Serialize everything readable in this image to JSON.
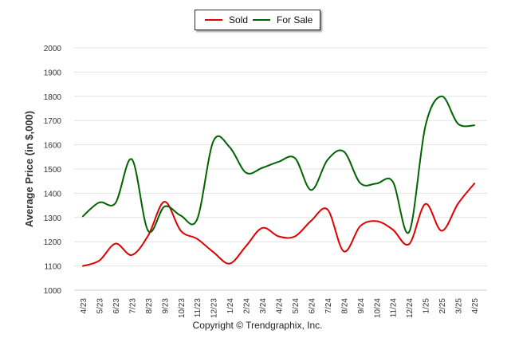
{
  "chart_data": {
    "type": "line",
    "title": "",
    "xlabel": "",
    "ylabel": "Average Price (in $,000)",
    "ylim": [
      1000,
      2000
    ],
    "yticks": [
      1000,
      1100,
      1200,
      1300,
      1400,
      1500,
      1600,
      1700,
      1800,
      1900,
      2000
    ],
    "grid": true,
    "legend_position": "top-center",
    "categories": [
      "4/23",
      "5/23",
      "6/23",
      "7/23",
      "8/23",
      "9/23",
      "10/23",
      "11/23",
      "12/23",
      "1/24",
      "2/24",
      "3/24",
      "4/24",
      "5/24",
      "6/24",
      "7/24",
      "8/24",
      "9/24",
      "10/24",
      "11/24",
      "12/24",
      "1/25",
      "2/25",
      "3/25",
      "4/25"
    ],
    "series": [
      {
        "name": "Sold",
        "color": "#e00000",
        "values": [
          1100,
          1122,
          1192,
          1145,
          1225,
          1365,
          1245,
          1212,
          1157,
          1110,
          1182,
          1257,
          1222,
          1222,
          1287,
          1333,
          1160,
          1264,
          1285,
          1250,
          1190,
          1356,
          1245,
          1357,
          1440
        ]
      },
      {
        "name": "For Sale",
        "color": "#006400",
        "values": [
          1305,
          1362,
          1360,
          1540,
          1245,
          1345,
          1308,
          1292,
          1615,
          1590,
          1485,
          1505,
          1530,
          1545,
          1413,
          1538,
          1572,
          1442,
          1440,
          1448,
          1240,
          1677,
          1800,
          1687,
          1680
        ]
      }
    ]
  },
  "footer": {
    "copyright": "Copyright © Trendgraphix, Inc."
  }
}
